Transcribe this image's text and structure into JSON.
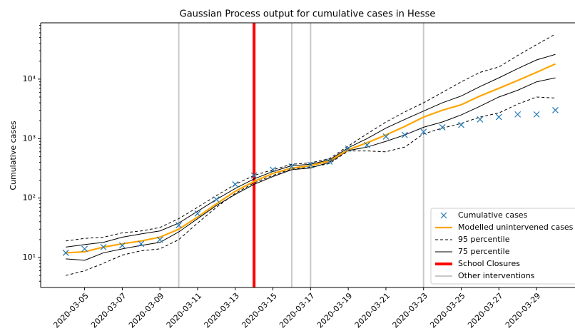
{
  "chart_data": {
    "type": "line",
    "title": "Gaussian Process output for cumulative cases in Hesse",
    "y_label": "Cumulative cases",
    "y_scale": "log",
    "x": [
      "2020-03-04",
      "2020-03-05",
      "2020-03-06",
      "2020-03-07",
      "2020-03-08",
      "2020-03-09",
      "2020-03-10",
      "2020-03-11",
      "2020-03-12",
      "2020-03-13",
      "2020-03-14",
      "2020-03-15",
      "2020-03-16",
      "2020-03-17",
      "2020-03-18",
      "2020-03-19",
      "2020-03-20",
      "2020-03-21",
      "2020-03-22",
      "2020-03-23",
      "2020-03-24",
      "2020-03-25",
      "2020-03-26",
      "2020-03-27",
      "2020-03-28",
      "2020-03-29",
      "2020-03-30"
    ],
    "xlim": [
      "2020-03-02T16:00",
      "2020-03-31T01:00"
    ],
    "xticks": [
      "2020-03-05",
      "2020-03-07",
      "2020-03-09",
      "2020-03-11",
      "2020-03-13",
      "2020-03-15",
      "2020-03-17",
      "2020-03-19",
      "2020-03-21",
      "2020-03-23",
      "2020-03-25",
      "2020-03-27",
      "2020-03-29"
    ],
    "ylim": [
      3.14,
      88300
    ],
    "yticks": [
      {
        "value": 10,
        "label": "10¹"
      },
      {
        "value": 100,
        "label": "10²"
      },
      {
        "value": 1000,
        "label": "10³"
      },
      {
        "value": 10000,
        "label": "10⁴"
      }
    ],
    "markers": {
      "name": "Cumulative cases",
      "color": "#1f77b4",
      "values": [
        12,
        14,
        15,
        16,
        17,
        20,
        35,
        55,
        95,
        170,
        240,
        300,
        340,
        360,
        410,
        680,
        780,
        1080,
        1150,
        1300,
        1550,
        1700,
        2100,
        2300,
        2550,
        2550,
        3000
      ]
    },
    "series": [
      {
        "name": "Modelled unintervened cases",
        "color": "#ffa500",
        "values": [
          12,
          12.5,
          15,
          17,
          19,
          22,
          30,
          48,
          80,
          130,
          190,
          260,
          320,
          350,
          420,
          650,
          850,
          1150,
          1600,
          2300,
          3000,
          3700,
          5200,
          7000,
          9500,
          13000,
          18000
        ]
      }
    ],
    "bands": [
      {
        "name": "95 percentile",
        "color": "#000000",
        "dashed": true,
        "upper": [
          19,
          21,
          22,
          26,
          28,
          32,
          45,
          70,
          110,
          170,
          240,
          300,
          370,
          390,
          460,
          750,
          1200,
          1900,
          2800,
          4000,
          6000,
          9000,
          13000,
          16000,
          25000,
          38000,
          57000
        ],
        "lower": [
          5,
          6,
          8,
          11,
          13,
          14,
          20,
          38,
          70,
          120,
          180,
          240,
          310,
          330,
          380,
          620,
          620,
          600,
          720,
          1200,
          1500,
          1800,
          2300,
          2700,
          3800,
          5000,
          4800
        ]
      },
      {
        "name": "75 percentile",
        "color": "#000000",
        "dashed": false,
        "upper": [
          15,
          16.5,
          18,
          22,
          25,
          28,
          38,
          60,
          95,
          145,
          210,
          280,
          350,
          370,
          440,
          700,
          1000,
          1500,
          2100,
          2900,
          4000,
          5200,
          7500,
          10500,
          15000,
          21000,
          26000
        ],
        "lower": [
          9.5,
          9,
          12,
          14,
          16,
          18,
          27,
          45,
          75,
          115,
          170,
          230,
          300,
          320,
          400,
          630,
          720,
          900,
          1150,
          1550,
          1900,
          2500,
          3500,
          5000,
          6500,
          9000,
          10500
        ]
      }
    ],
    "events": [
      {
        "name": "School Closures",
        "color": "#ff0000",
        "dates": [
          "2020-03-14"
        ]
      },
      {
        "name": "Other interventions",
        "color": "#c8c8c8",
        "dates": [
          "2020-03-10",
          "2020-03-16",
          "2020-03-17",
          "2020-03-23"
        ]
      }
    ],
    "legend": "lower right"
  }
}
